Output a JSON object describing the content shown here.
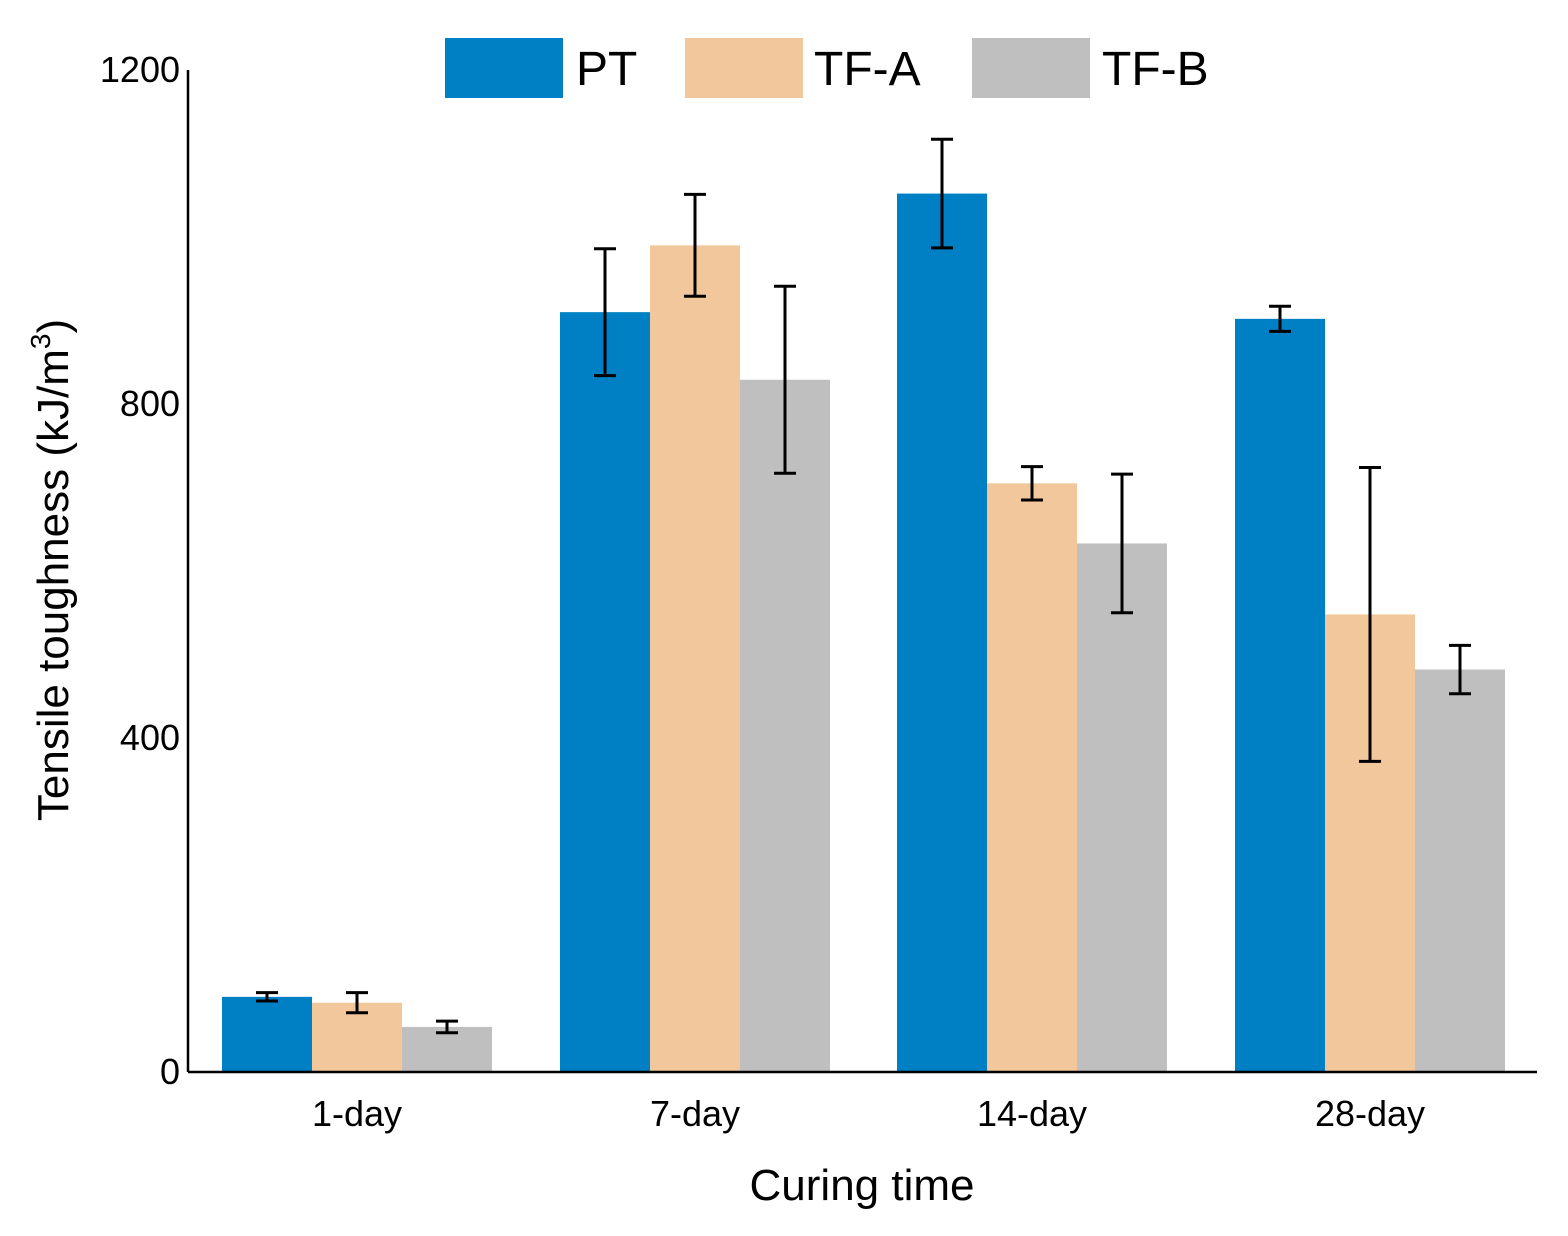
{
  "chart_data": {
    "type": "bar",
    "title": "",
    "xlabel": "Curing time",
    "ylabel": "Tensile toughness (kJ/m",
    "ylabel_superscript": "3",
    "ylabel_close": ")",
    "ylim": [
      0,
      1200
    ],
    "yticks": [
      "0",
      "400",
      "800",
      "1200"
    ],
    "ytick_values": [
      0,
      400,
      800,
      1200
    ],
    "categories": [
      "1-day",
      "7-day",
      "14-day",
      "28-day"
    ],
    "legend_position": "top-center",
    "series": [
      {
        "name": "PT",
        "color": "#0080C4",
        "values": [
          90,
          910,
          1052,
          902
        ],
        "errors": [
          5,
          76,
          65,
          15
        ]
      },
      {
        "name": "TF-A",
        "color": "#F2C79B",
        "values": [
          83,
          990,
          705,
          548
        ],
        "errors": [
          12,
          61,
          20,
          176
        ]
      },
      {
        "name": "TF-B",
        "color": "#BFBFBF",
        "values": [
          54,
          829,
          633,
          482
        ],
        "errors": [
          7,
          112,
          83,
          29
        ]
      }
    ]
  }
}
